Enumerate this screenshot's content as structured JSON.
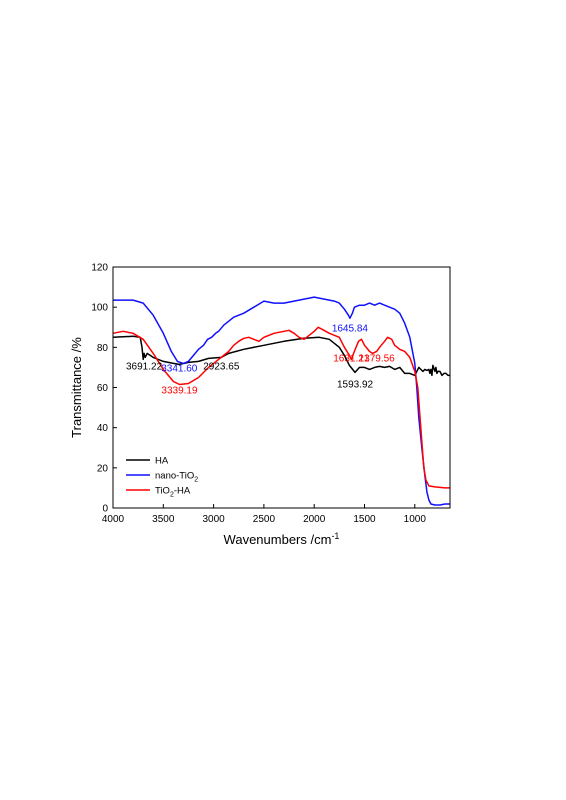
{
  "chart_data": {
    "type": "line",
    "xlabel": "Wavenumbers /cm",
    "xlabel_sup": "-1",
    "ylabel": "Transmittance /%",
    "xlim": [
      4000,
      650
    ],
    "ylim": [
      0,
      120
    ],
    "x_reversed": true,
    "grid": false,
    "legend_position": "bottom-left",
    "x_ticks": [
      4000,
      3500,
      3000,
      2500,
      2000,
      1500,
      1000
    ],
    "y_ticks": [
      0,
      20,
      40,
      60,
      80,
      100,
      120
    ],
    "series": [
      {
        "name": "HA",
        "legend_parts": [
          {
            "text": "HA"
          }
        ],
        "color": "#000000",
        "points": [
          [
            4000,
            85
          ],
          [
            3800,
            85.5
          ],
          [
            3730,
            85
          ],
          [
            3712,
            80
          ],
          [
            3700,
            74
          ],
          [
            3691,
            77
          ],
          [
            3680,
            75
          ],
          [
            3660,
            77
          ],
          [
            3600,
            75
          ],
          [
            3500,
            73
          ],
          [
            3400,
            72
          ],
          [
            3341,
            71.5
          ],
          [
            3250,
            72.5
          ],
          [
            3150,
            73
          ],
          [
            3050,
            74.5
          ],
          [
            2923,
            75
          ],
          [
            2850,
            77
          ],
          [
            2700,
            79
          ],
          [
            2500,
            81
          ],
          [
            2300,
            83
          ],
          [
            2100,
            84.5
          ],
          [
            1950,
            85
          ],
          [
            1850,
            84
          ],
          [
            1750,
            80
          ],
          [
            1700,
            76
          ],
          [
            1650,
            71
          ],
          [
            1594,
            67.5
          ],
          [
            1550,
            70
          ],
          [
            1500,
            70
          ],
          [
            1450,
            69
          ],
          [
            1400,
            70
          ],
          [
            1350,
            70.5
          ],
          [
            1300,
            70
          ],
          [
            1250,
            70.5
          ],
          [
            1200,
            69
          ],
          [
            1150,
            70
          ],
          [
            1100,
            67
          ],
          [
            1050,
            67
          ],
          [
            1000,
            66
          ],
          [
            960,
            70
          ],
          [
            920,
            68
          ],
          [
            900,
            69
          ],
          [
            880,
            68.5
          ],
          [
            860,
            69
          ],
          [
            850,
            67
          ],
          [
            840,
            69
          ],
          [
            830,
            66
          ],
          [
            820,
            71
          ],
          [
            800,
            68
          ],
          [
            790,
            70
          ],
          [
            780,
            67
          ],
          [
            770,
            68
          ],
          [
            750,
            68
          ],
          [
            730,
            66
          ],
          [
            710,
            67
          ],
          [
            690,
            67
          ],
          [
            670,
            66
          ],
          [
            650,
            66
          ]
        ]
      },
      {
        "name": "nano-TiO2",
        "legend_parts": [
          {
            "text": "nano-TiO"
          },
          {
            "text": "2",
            "sub": true
          }
        ],
        "color": "#1010ff",
        "points": [
          [
            4000,
            103.5
          ],
          [
            3800,
            103.5
          ],
          [
            3700,
            102
          ],
          [
            3600,
            96
          ],
          [
            3500,
            87
          ],
          [
            3420,
            78
          ],
          [
            3360,
            73
          ],
          [
            3300,
            72
          ],
          [
            3250,
            73
          ],
          [
            3200,
            76
          ],
          [
            3150,
            79
          ],
          [
            3100,
            81
          ],
          [
            3060,
            84
          ],
          [
            3020,
            85
          ],
          [
            2980,
            87
          ],
          [
            2950,
            88
          ],
          [
            2900,
            91
          ],
          [
            2850,
            93
          ],
          [
            2800,
            95
          ],
          [
            2700,
            97
          ],
          [
            2600,
            100
          ],
          [
            2500,
            103
          ],
          [
            2400,
            102
          ],
          [
            2300,
            102
          ],
          [
            2200,
            103
          ],
          [
            2100,
            104
          ],
          [
            2000,
            105
          ],
          [
            1950,
            104.5
          ],
          [
            1900,
            104
          ],
          [
            1800,
            103
          ],
          [
            1750,
            102
          ],
          [
            1700,
            99
          ],
          [
            1660,
            96
          ],
          [
            1645,
            94.5
          ],
          [
            1620,
            97
          ],
          [
            1600,
            100
          ],
          [
            1550,
            101
          ],
          [
            1500,
            101
          ],
          [
            1450,
            102
          ],
          [
            1400,
            101
          ],
          [
            1350,
            102
          ],
          [
            1300,
            101
          ],
          [
            1250,
            100
          ],
          [
            1200,
            99
          ],
          [
            1150,
            97
          ],
          [
            1100,
            92
          ],
          [
            1050,
            85
          ],
          [
            1000,
            72
          ],
          [
            980,
            60
          ],
          [
            960,
            45
          ],
          [
            930,
            30
          ],
          [
            900,
            16
          ],
          [
            880,
            8
          ],
          [
            860,
            4
          ],
          [
            840,
            2
          ],
          [
            800,
            1.5
          ],
          [
            750,
            1.5
          ],
          [
            700,
            2
          ],
          [
            650,
            2
          ]
        ]
      },
      {
        "name": "TiO2-HA",
        "legend_parts": [
          {
            "text": "TiO"
          },
          {
            "text": "2",
            "sub": true
          },
          {
            "text": "-HA"
          }
        ],
        "color": "#ff0000",
        "points": [
          [
            4000,
            87
          ],
          [
            3900,
            88
          ],
          [
            3800,
            87
          ],
          [
            3700,
            84
          ],
          [
            3600,
            77
          ],
          [
            3500,
            69
          ],
          [
            3400,
            63
          ],
          [
            3339,
            61.5
          ],
          [
            3250,
            62
          ],
          [
            3150,
            65
          ],
          [
            3050,
            70
          ],
          [
            2950,
            74
          ],
          [
            2900,
            76
          ],
          [
            2850,
            78
          ],
          [
            2800,
            81
          ],
          [
            2750,
            83
          ],
          [
            2700,
            84.5
          ],
          [
            2650,
            85
          ],
          [
            2600,
            84
          ],
          [
            2550,
            83
          ],
          [
            2500,
            85
          ],
          [
            2400,
            87
          ],
          [
            2300,
            88
          ],
          [
            2250,
            88.5
          ],
          [
            2200,
            87
          ],
          [
            2150,
            85
          ],
          [
            2100,
            84
          ],
          [
            2050,
            86
          ],
          [
            2000,
            88
          ],
          [
            1960,
            90
          ],
          [
            1920,
            89
          ],
          [
            1850,
            87
          ],
          [
            1800,
            86
          ],
          [
            1750,
            85
          ],
          [
            1700,
            80
          ],
          [
            1650,
            76
          ],
          [
            1631,
            74
          ],
          [
            1600,
            78
          ],
          [
            1560,
            83
          ],
          [
            1530,
            84
          ],
          [
            1500,
            81
          ],
          [
            1450,
            78
          ],
          [
            1420,
            77
          ],
          [
            1380,
            78
          ],
          [
            1350,
            80
          ],
          [
            1300,
            83
          ],
          [
            1270,
            85
          ],
          [
            1230,
            84
          ],
          [
            1200,
            81
          ],
          [
            1150,
            79
          ],
          [
            1100,
            78
          ],
          [
            1050,
            75
          ],
          [
            1000,
            68
          ],
          [
            970,
            60
          ],
          [
            940,
            40
          ],
          [
            910,
            20
          ],
          [
            890,
            14
          ],
          [
            860,
            11
          ],
          [
            800,
            10.5
          ],
          [
            700,
            10
          ],
          [
            650,
            10
          ]
        ]
      }
    ],
    "annotations": [
      {
        "text": "3691.22",
        "color": "#000000",
        "x": 3691,
        "y": 69
      },
      {
        "text": "3341.60",
        "color": "#1010ff",
        "x": 3341,
        "y": 68
      },
      {
        "text": "3339.19",
        "color": "#ff0000",
        "x": 3339,
        "y": 57
      },
      {
        "text": "2923.65",
        "color": "#000000",
        "x": 2923,
        "y": 69
      },
      {
        "text": "1645.84",
        "color": "#1010ff",
        "x": 1645,
        "y": 88
      },
      {
        "text": "1631.21",
        "color": "#ff0000",
        "x": 1631,
        "y": 73
      },
      {
        "text": "1379.56",
        "color": "#ff0000",
        "x": 1379,
        "y": 73
      },
      {
        "text": "1593.92",
        "color": "#000000",
        "x": 1594,
        "y": 60
      }
    ]
  }
}
